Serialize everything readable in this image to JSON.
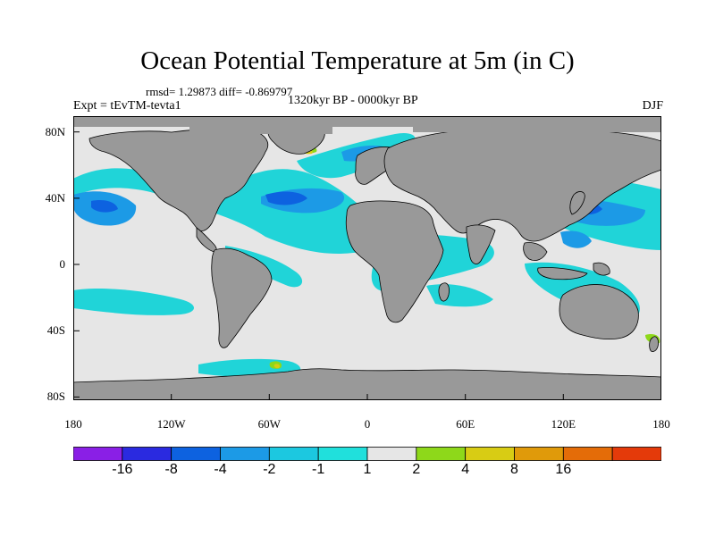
{
  "title": "Ocean Potential Temperature at 5m (in C)",
  "stats": "rmsd= 1.29873 diff= -0.869797",
  "expt": "Expt = tEvTM-tevta1",
  "period": "1320kyr BP - 0000kyr BP",
  "season": "DJF",
  "lon_labels": [
    "180",
    "120W",
    "60W",
    "0",
    "60E",
    "120E",
    "180"
  ],
  "lat_labels": [
    "80N",
    "40N",
    "0",
    "40S",
    "80S"
  ],
  "colorbar": {
    "colors": [
      "#8a1fe6",
      "#2a2ae0",
      "#0d62e0",
      "#1c9ae6",
      "#1cc8e0",
      "#20e0dc",
      "#e6e6e6",
      "#8ed81a",
      "#d8cc14",
      "#e09a0a",
      "#e46c08",
      "#e43a0a"
    ],
    "labels": [
      "-16",
      "-8",
      "-4",
      "-2",
      "-1",
      "1",
      "2",
      "4",
      "8",
      "16"
    ]
  },
  "colors": {
    "land": "#999999",
    "ocean_neutral": "#e6e6e6",
    "cool_1": "#20d4d8",
    "cool_2": "#1c9ae6",
    "cool_3": "#0d62e0",
    "warm_1": "#8ed81a",
    "warm_2": "#d8cc14"
  }
}
